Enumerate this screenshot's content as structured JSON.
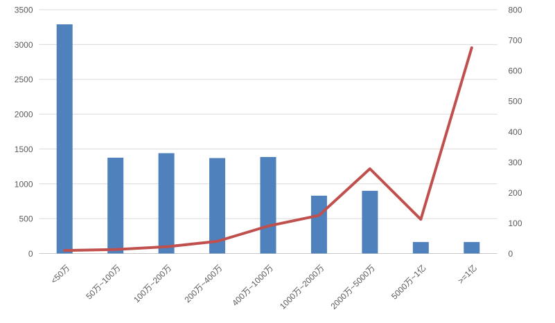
{
  "chart_data": {
    "type": "combo",
    "subtypes": [
      "bar",
      "line"
    ],
    "title": "",
    "legend": "none",
    "grid": true,
    "background": "#FFFFFF",
    "categories": [
      "<50万",
      "50万~100万",
      "100万~200万",
      "200万~400万",
      "400万~1000万",
      "1000万~2000万",
      "2000万~5000万",
      "5000万~1亿",
      ">=1亿"
    ],
    "series": [
      {
        "name": "bars",
        "type": "bar",
        "axis": "left",
        "color": "#4F81BD",
        "values": [
          3290,
          1375,
          1440,
          1370,
          1385,
          830,
          900,
          165,
          165
        ]
      },
      {
        "name": "line",
        "type": "line",
        "axis": "right",
        "color": "#C0504D",
        "values": [
          10,
          13,
          22,
          40,
          90,
          125,
          278,
          112,
          675
        ]
      }
    ],
    "left_axis": {
      "min": 0,
      "max": 3500,
      "step": 500,
      "tick_labels": [
        "0",
        "500",
        "1000",
        "1500",
        "2000",
        "2500",
        "3000",
        "3500"
      ]
    },
    "right_axis": {
      "min": 0,
      "max": 800,
      "step": 100,
      "tick_labels": [
        "0",
        "100",
        "200",
        "300",
        "400",
        "500",
        "600",
        "700",
        "800"
      ]
    },
    "axis_text_color": "#595959",
    "grid_color": "#D9D9D9",
    "axis_line_color": "#C9C9C9"
  }
}
